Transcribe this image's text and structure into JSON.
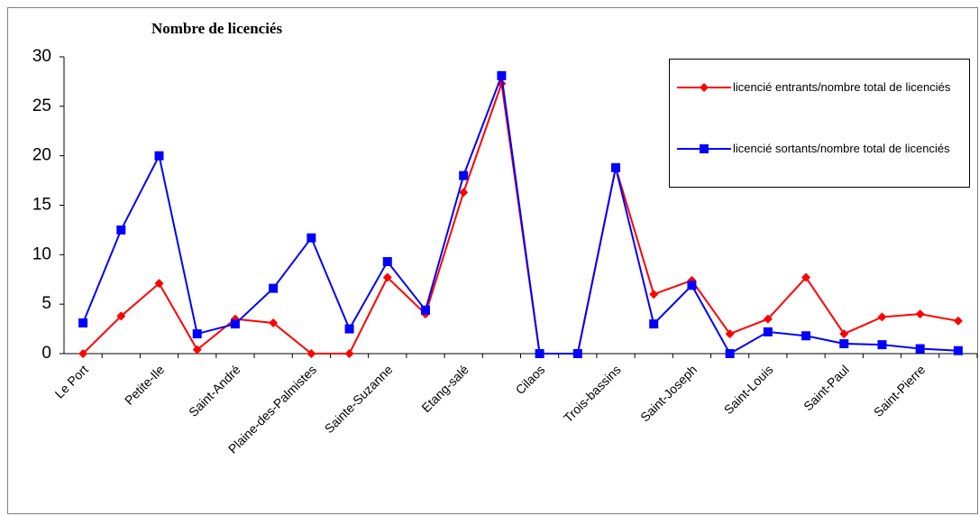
{
  "chart_data": {
    "type": "line",
    "title": "Nombre de licenciés",
    "categories": [
      "Le Port",
      null,
      "Petite-Ile",
      null,
      "Saint-André",
      null,
      "Plaine-des-Palmistes",
      null,
      "Sainte-Suzanne",
      null,
      "Etang-salé",
      null,
      "Cilaos",
      null,
      "Trois-bassins",
      null,
      "Saint-Joseph",
      null,
      "Saint-Louis",
      null,
      "Saint-Paul",
      null,
      "Saint-Pierre",
      null
    ],
    "series": [
      {
        "name": "licencié entrants/nombre total de licenciés",
        "color": "#ff0000",
        "marker": "diamond",
        "values": [
          0,
          3.8,
          7.1,
          0.4,
          3.5,
          3.1,
          0,
          0,
          7.7,
          4.0,
          16.3,
          27.3,
          0,
          0,
          18.8,
          6.0,
          7.4,
          2.0,
          3.5,
          7.7,
          2.0,
          3.7,
          4.0,
          3.3
        ]
      },
      {
        "name": "licencié sortants/nombre total de licenciés",
        "color": "#0000ff",
        "marker": "square",
        "values": [
          3.1,
          12.5,
          20.0,
          2.0,
          3.0,
          6.6,
          11.7,
          2.5,
          9.3,
          4.4,
          18.0,
          28.1,
          0,
          0,
          18.8,
          3.0,
          6.9,
          0,
          2.2,
          1.8,
          1.0,
          0.9,
          0.5,
          0.3
        ]
      }
    ],
    "ylim": [
      0,
      30
    ],
    "yticks": [
      0,
      5,
      10,
      15,
      20,
      25,
      30
    ],
    "grid": false,
    "legend": "top-right"
  }
}
